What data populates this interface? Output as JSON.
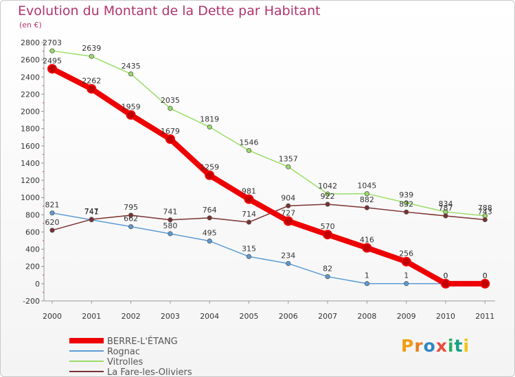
{
  "header": {
    "title": "Evolution du Montant de la Dette par Habitant",
    "unit": "(en €)"
  },
  "logo": {
    "text": "Proxiti",
    "letters": [
      "P",
      "r",
      "o",
      "x",
      "i",
      "t",
      "i"
    ],
    "colors": [
      "#f39c12",
      "#e67e22",
      "#2e86c1",
      "#e74c3c",
      "#27ae60",
      "#16a085",
      "#f1c40f"
    ]
  },
  "chart_data": {
    "type": "line",
    "title": "Evolution du Montant de la Dette par Habitant",
    "ylabel": "(en €)",
    "xlabel": "",
    "x": [
      "2000",
      "2001",
      "2002",
      "2003",
      "2004",
      "2005",
      "2006",
      "2007",
      "2008",
      "2009",
      "2010",
      "2011"
    ],
    "ylim": [
      -200,
      2800
    ],
    "yticks": [
      -200,
      0,
      200,
      400,
      600,
      800,
      1000,
      1200,
      1400,
      1600,
      1800,
      2000,
      2200,
      2400,
      2600,
      2800
    ],
    "grid": false,
    "legend_position": "bottom-left",
    "series": [
      {
        "name": "BERRE-L'ÉTANG",
        "color": "#ee0000",
        "values": [
          2495,
          2262,
          1959,
          1679,
          1259,
          981,
          727,
          570,
          416,
          256,
          0,
          0
        ]
      },
      {
        "name": "Rognac",
        "color": "#5b9bd5",
        "values": [
          821,
          741,
          662,
          580,
          495,
          315,
          234,
          82,
          1,
          1,
          0,
          0
        ]
      },
      {
        "name": "Vitrolles",
        "color": "#99dd66",
        "values": [
          2703,
          2639,
          2435,
          2035,
          1819,
          1546,
          1357,
          1042,
          1045,
          939,
          834,
          788
        ]
      },
      {
        "name": "La Fare-les-Oliviers",
        "color": "#7a3030",
        "values": [
          620,
          747,
          795,
          741,
          764,
          714,
          904,
          922,
          882,
          832,
          787,
          743
        ]
      }
    ]
  }
}
